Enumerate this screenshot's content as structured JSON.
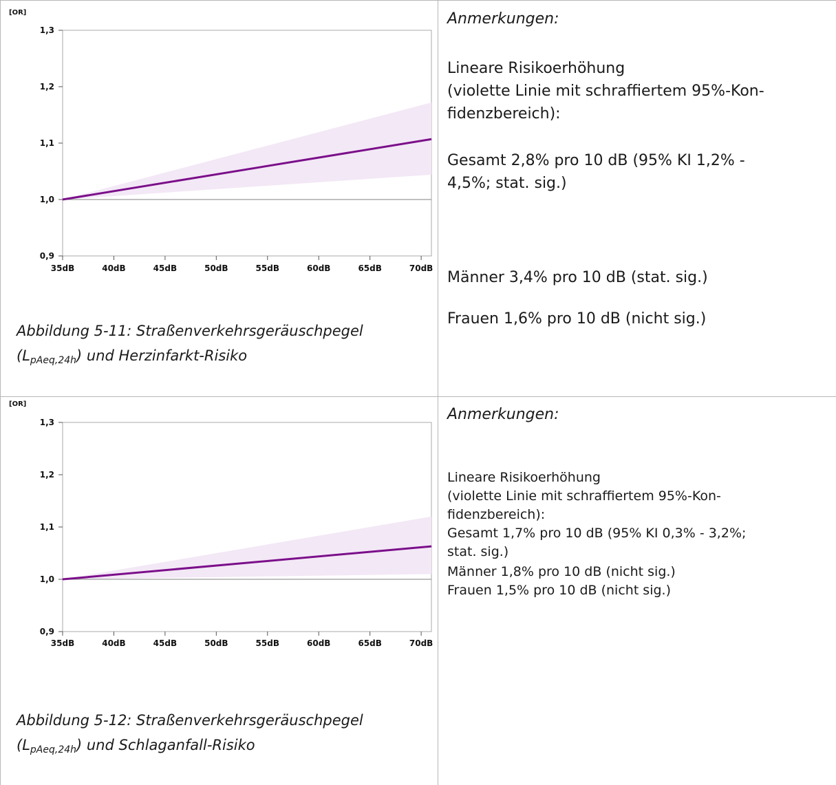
{
  "chart_data": [
    {
      "type": "line",
      "title": "",
      "unit_label": "[OR]",
      "x": [
        "35dB",
        "40dB",
        "45dB",
        "50dB",
        "55dB",
        "60dB",
        "65dB",
        "70dB"
      ],
      "x_range": [
        35,
        71
      ],
      "ylim": [
        0.9,
        1.3
      ],
      "yticks": [
        "1,3",
        "1,2",
        "1,1",
        "1,0",
        "0,9"
      ],
      "ytick_values": [
        1.3,
        1.2,
        1.1,
        1.0,
        0.9
      ],
      "reference_line": 1.0,
      "line": {
        "x": [
          35,
          71
        ],
        "y": [
          1.0,
          1.107
        ]
      },
      "band": {
        "x": [
          35,
          71
        ],
        "lower": [
          1.0,
          1.044
        ],
        "upper": [
          1.0,
          1.172
        ]
      },
      "line_color": "#7b0f8a",
      "band_color": "#f3e8f6"
    },
    {
      "type": "line",
      "title": "",
      "unit_label": "[OR]",
      "x": [
        "35dB",
        "40dB",
        "45dB",
        "50dB",
        "55dB",
        "60dB",
        "65dB",
        "70dB"
      ],
      "x_range": [
        35,
        71
      ],
      "ylim": [
        0.9,
        1.3
      ],
      "yticks": [
        "1,3",
        "1,2",
        "1,1",
        "1,0",
        "0,9"
      ],
      "ytick_values": [
        1.3,
        1.2,
        1.1,
        1.0,
        0.9
      ],
      "reference_line": 1.0,
      "line": {
        "x": [
          35,
          71
        ],
        "y": [
          1.0,
          1.063
        ]
      },
      "band": {
        "x": [
          35,
          71
        ],
        "lower": [
          1.0,
          1.01
        ],
        "upper": [
          1.0,
          1.12
        ]
      },
      "line_color": "#7b0f8a",
      "band_color": "#f3e8f6"
    }
  ],
  "figures": [
    {
      "caption_prefix": "Abbildung 5-11: Straßenverkehrsgeräuschpegel",
      "caption_sub_open": "(L",
      "caption_sub": "pAeq,24h",
      "caption_rest": ") und Herzinfarkt-Risiko",
      "notes_title": "Anmerkungen:",
      "notes": [
        "Lineare Risikoerhöhung",
        "(violette Linie mit schraffiertem 95%-Kon-",
        "fidenzbereich):",
        "Gesamt 2,8% pro 10 dB (95% KI 1,2% -",
        "4,5%; stat. sig.)",
        "Männer 3,4% pro 10 dB (stat. sig.)",
        "Frauen 1,6% pro 10 dB (nicht sig.)"
      ]
    },
    {
      "caption_prefix": "Abbildung 5-12: Straßenverkehrsgeräuschpegel",
      "caption_sub_open": "(L",
      "caption_sub": "pAeq,24h",
      "caption_rest": ") und Schlaganfall-Risiko",
      "notes_title": "Anmerkungen:",
      "notes": [
        "Lineare Risikoerhöhung",
        "(violette Linie mit schraffiertem 95%-Kon-",
        "fidenzbereich):",
        "Gesamt 1,7% pro 10 dB (95% KI 0,3% - 3,2%;",
        "stat. sig.)",
        "Männer 1,8% pro 10 dB (nicht sig.)",
        "Frauen 1,5% pro 10 dB (nicht sig.)"
      ]
    }
  ]
}
